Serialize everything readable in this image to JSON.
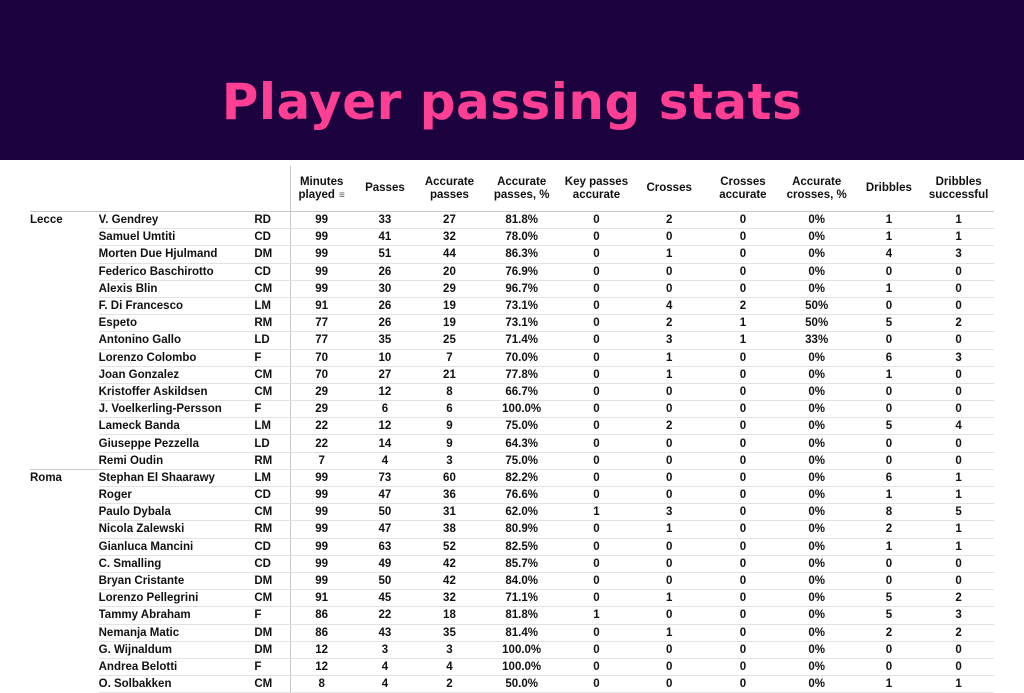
{
  "title": "Player passing stats",
  "colors": {
    "banner": "#1c0340",
    "title": "#ff3f94"
  },
  "chart_data": {
    "type": "table",
    "columns": [
      "Minutes played",
      "Passes",
      "Accurate passes",
      "Accurate passes, %",
      "Key passes accurate",
      "Crosses",
      "Crosses accurate",
      "Accurate crosses, %",
      "Dribbles",
      "Dribbles successful"
    ],
    "sort_icon": "sort-descending-icon",
    "teams": [
      {
        "name": "Lecce",
        "players": [
          [
            "V. Gendrey",
            "RD",
            "99",
            "33",
            "27",
            "81.8%",
            "0",
            "2",
            "0",
            "0%",
            "1",
            "1"
          ],
          [
            "Samuel Umtiti",
            "CD",
            "99",
            "41",
            "32",
            "78.0%",
            "0",
            "0",
            "0",
            "0%",
            "1",
            "1"
          ],
          [
            "Morten Due Hjulmand",
            "DM",
            "99",
            "51",
            "44",
            "86.3%",
            "0",
            "1",
            "0",
            "0%",
            "4",
            "3"
          ],
          [
            "Federico Baschirotto",
            "CD",
            "99",
            "26",
            "20",
            "76.9%",
            "0",
            "0",
            "0",
            "0%",
            "0",
            "0"
          ],
          [
            "Alexis Blin",
            "CM",
            "99",
            "30",
            "29",
            "96.7%",
            "0",
            "0",
            "0",
            "0%",
            "1",
            "0"
          ],
          [
            "F. Di Francesco",
            "LM",
            "91",
            "26",
            "19",
            "73.1%",
            "0",
            "4",
            "2",
            "50%",
            "0",
            "0"
          ],
          [
            "Espeto",
            "RM",
            "77",
            "26",
            "19",
            "73.1%",
            "0",
            "2",
            "1",
            "50%",
            "5",
            "2"
          ],
          [
            "Antonino Gallo",
            "LD",
            "77",
            "35",
            "25",
            "71.4%",
            "0",
            "3",
            "1",
            "33%",
            "0",
            "0"
          ],
          [
            "Lorenzo Colombo",
            "F",
            "70",
            "10",
            "7",
            "70.0%",
            "0",
            "1",
            "0",
            "0%",
            "6",
            "3"
          ],
          [
            "Joan Gonzalez",
            "CM",
            "70",
            "27",
            "21",
            "77.8%",
            "0",
            "1",
            "0",
            "0%",
            "1",
            "0"
          ],
          [
            "Kristoffer Askildsen",
            "CM",
            "29",
            "12",
            "8",
            "66.7%",
            "0",
            "0",
            "0",
            "0%",
            "0",
            "0"
          ],
          [
            "J. Voelkerling-Persson",
            "F",
            "29",
            "6",
            "6",
            "100.0%",
            "0",
            "0",
            "0",
            "0%",
            "0",
            "0"
          ],
          [
            "Lameck Banda",
            "LM",
            "22",
            "12",
            "9",
            "75.0%",
            "0",
            "2",
            "0",
            "0%",
            "5",
            "4"
          ],
          [
            "Giuseppe Pezzella",
            "LD",
            "22",
            "14",
            "9",
            "64.3%",
            "0",
            "0",
            "0",
            "0%",
            "0",
            "0"
          ],
          [
            "Remi Oudin",
            "RM",
            "7",
            "4",
            "3",
            "75.0%",
            "0",
            "0",
            "0",
            "0%",
            "0",
            "0"
          ]
        ]
      },
      {
        "name": "Roma",
        "players": [
          [
            "Stephan El Shaarawy",
            "LM",
            "99",
            "73",
            "60",
            "82.2%",
            "0",
            "0",
            "0",
            "0%",
            "6",
            "1"
          ],
          [
            "Roger",
            "CD",
            "99",
            "47",
            "36",
            "76.6%",
            "0",
            "0",
            "0",
            "0%",
            "1",
            "1"
          ],
          [
            "Paulo Dybala",
            "CM",
            "99",
            "50",
            "31",
            "62.0%",
            "1",
            "3",
            "0",
            "0%",
            "8",
            "5"
          ],
          [
            "Nicola Zalewski",
            "RM",
            "99",
            "47",
            "38",
            "80.9%",
            "0",
            "1",
            "0",
            "0%",
            "2",
            "1"
          ],
          [
            "Gianluca Mancini",
            "CD",
            "99",
            "63",
            "52",
            "82.5%",
            "0",
            "0",
            "0",
            "0%",
            "1",
            "1"
          ],
          [
            "C. Smalling",
            "CD",
            "99",
            "49",
            "42",
            "85.7%",
            "0",
            "0",
            "0",
            "0%",
            "0",
            "0"
          ],
          [
            "Bryan Cristante",
            "DM",
            "99",
            "50",
            "42",
            "84.0%",
            "0",
            "0",
            "0",
            "0%",
            "0",
            "0"
          ],
          [
            "Lorenzo Pellegrini",
            "CM",
            "91",
            "45",
            "32",
            "71.1%",
            "0",
            "1",
            "0",
            "0%",
            "5",
            "2"
          ],
          [
            "Tammy Abraham",
            "F",
            "86",
            "22",
            "18",
            "81.8%",
            "1",
            "0",
            "0",
            "0%",
            "5",
            "3"
          ],
          [
            "Nemanja Matic",
            "DM",
            "86",
            "43",
            "35",
            "81.4%",
            "0",
            "1",
            "0",
            "0%",
            "2",
            "2"
          ],
          [
            "G. Wijnaldum",
            "DM",
            "12",
            "3",
            "3",
            "100.0%",
            "0",
            "0",
            "0",
            "0%",
            "0",
            "0"
          ],
          [
            "Andrea Belotti",
            "F",
            "12",
            "4",
            "4",
            "100.0%",
            "0",
            "0",
            "0",
            "0%",
            "0",
            "0"
          ],
          [
            "O. Solbakken",
            "CM",
            "8",
            "4",
            "2",
            "50.0%",
            "0",
            "0",
            "0",
            "0%",
            "1",
            "1"
          ]
        ]
      }
    ]
  }
}
